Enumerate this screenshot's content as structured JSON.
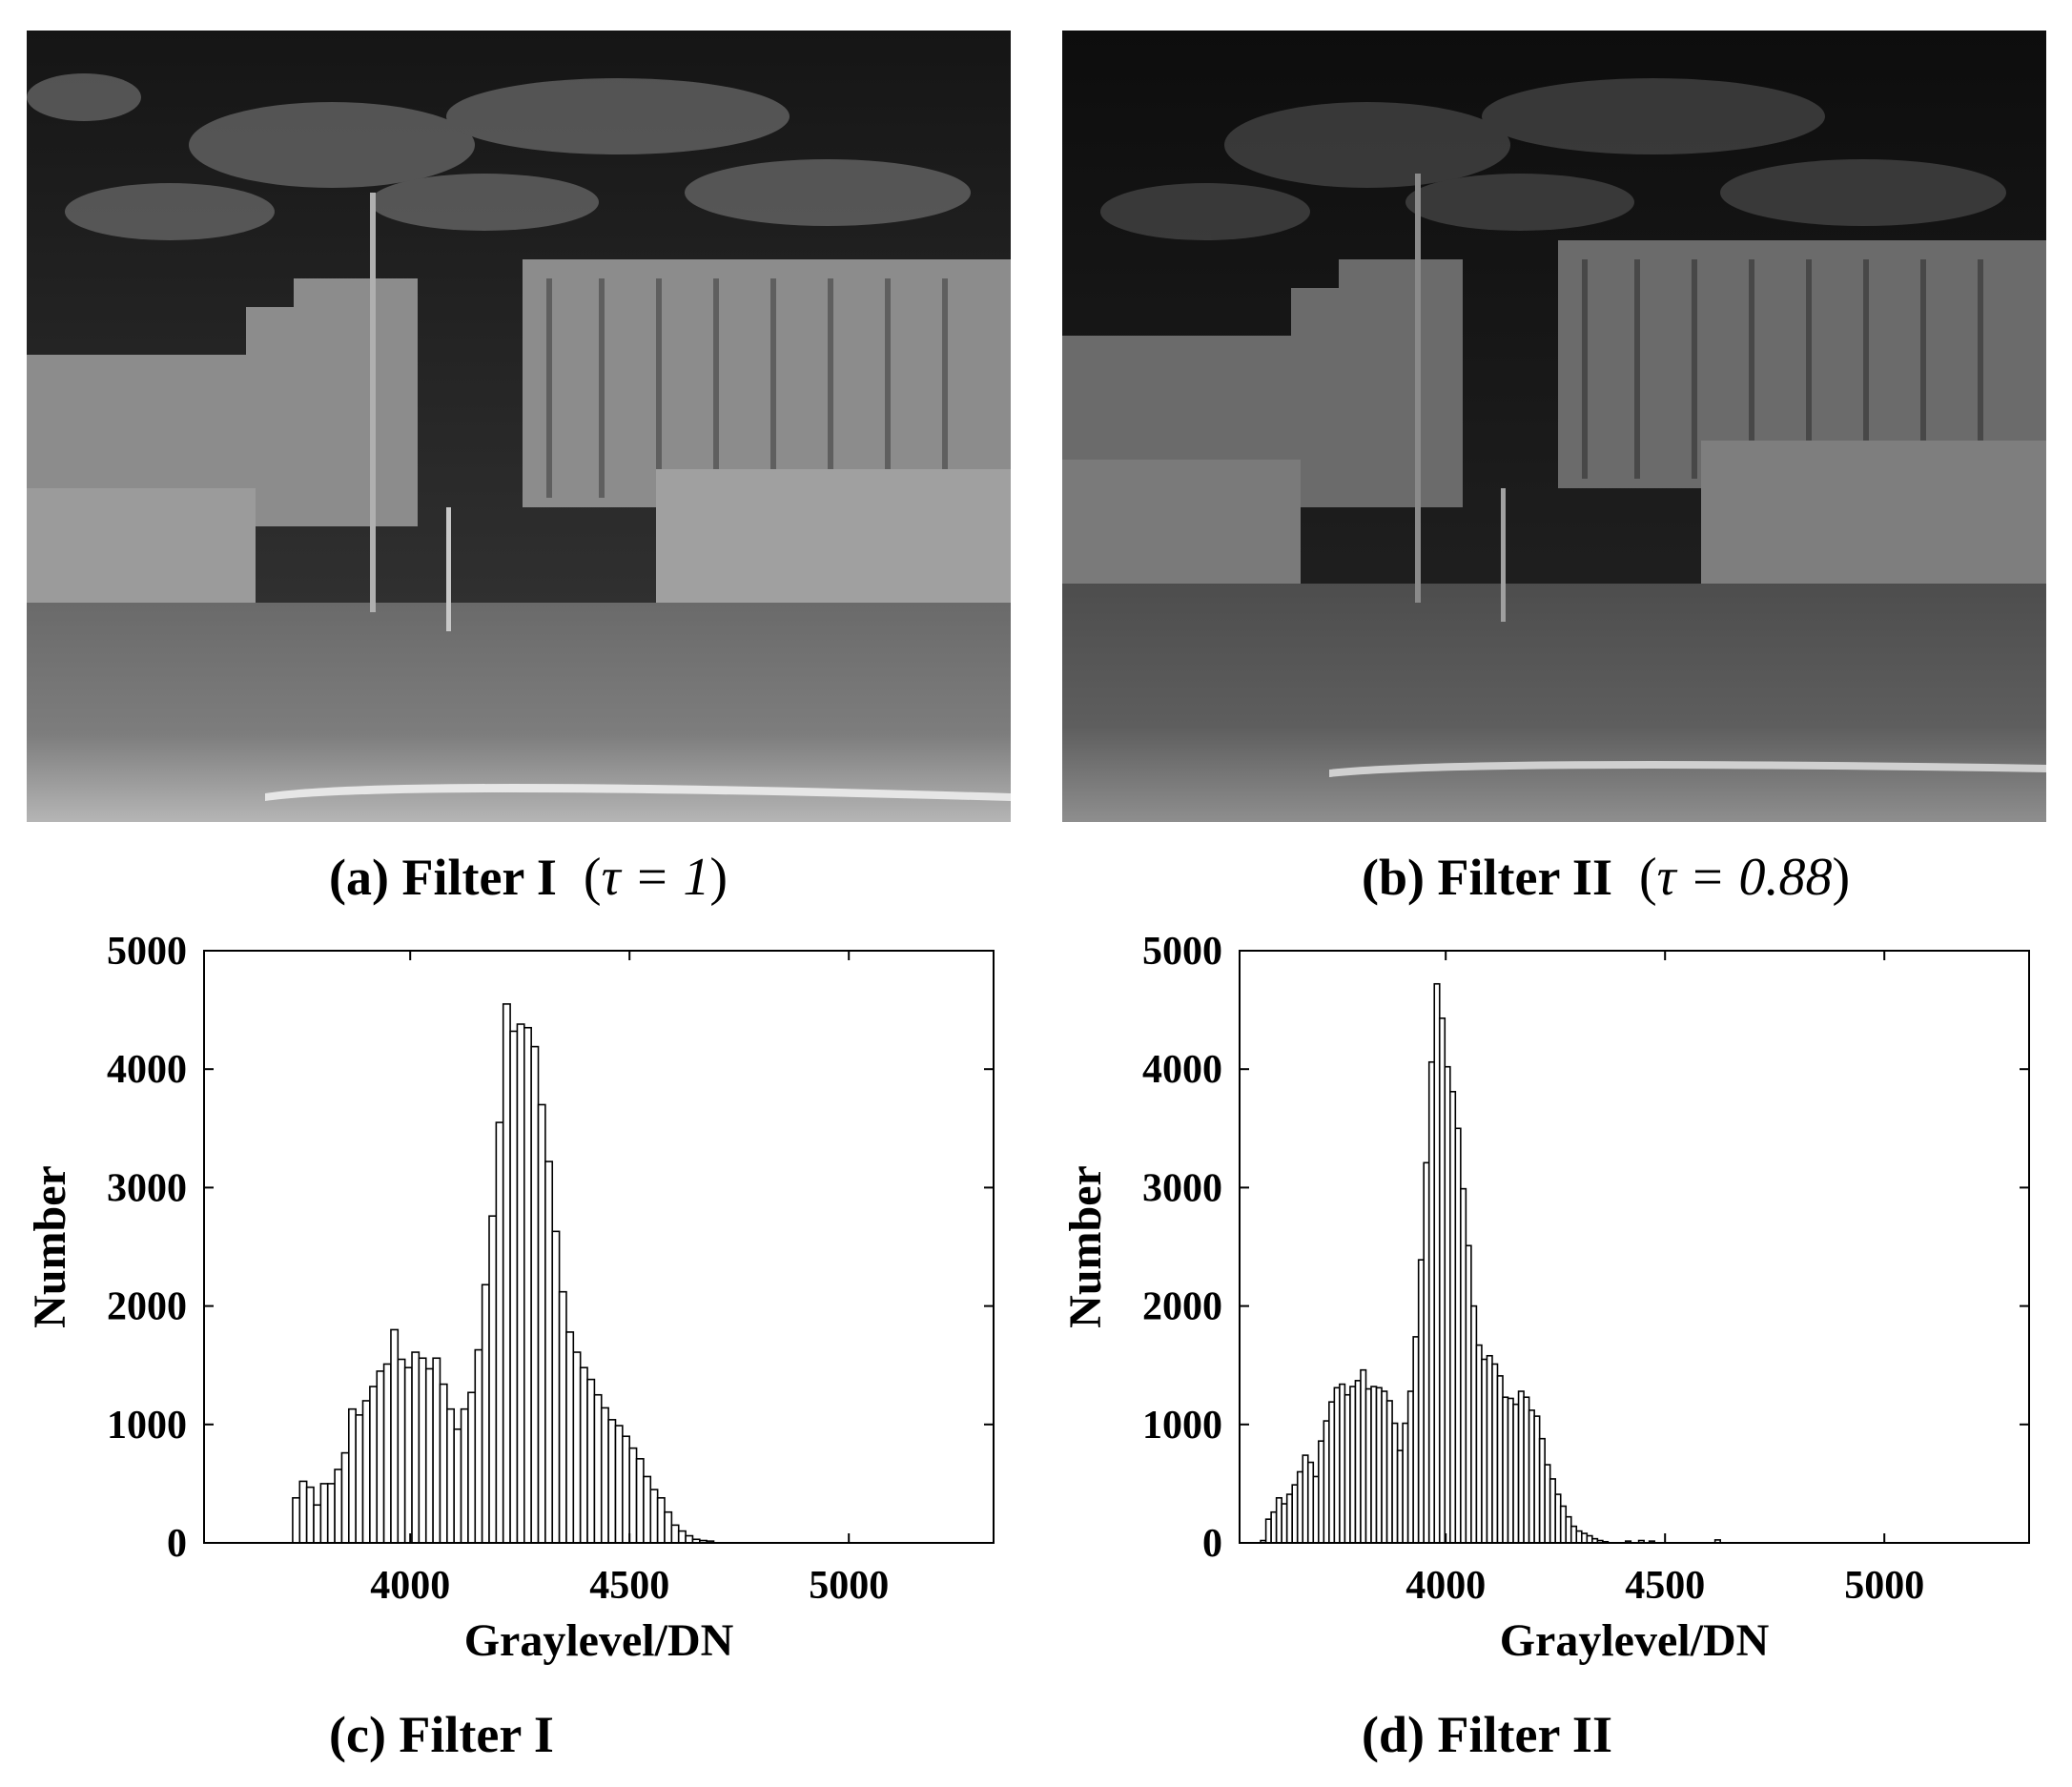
{
  "captions": {
    "a": {
      "label": "(a) Filter I",
      "tau": "τ = 1"
    },
    "b": {
      "label": "(b) Filter II",
      "tau": "τ = 0.88"
    },
    "c": {
      "label": "(c) Filter I"
    },
    "d": {
      "label": "(d) Filter II"
    }
  },
  "colors": {
    "bar_fill": "#ffffff",
    "bar_stroke": "#000000",
    "axis": "#000000"
  },
  "chart_data": [
    {
      "type": "bar",
      "title": "",
      "xlabel": "Graylevel/DN",
      "ylabel": "Number",
      "xlim": [
        3530,
        5330
      ],
      "ylim": [
        0,
        5000
      ],
      "xticks": [
        4000,
        4500,
        5000
      ],
      "yticks": [
        0,
        1000,
        2000,
        3000,
        4000,
        5000
      ],
      "bin_width": 16,
      "x": [
        3740,
        3756,
        3772,
        3788,
        3804,
        3820,
        3836,
        3852,
        3868,
        3884,
        3900,
        3916,
        3932,
        3948,
        3964,
        3980,
        3996,
        4012,
        4028,
        4044,
        4060,
        4076,
        4092,
        4108,
        4124,
        4140,
        4156,
        4172,
        4188,
        4204,
        4220,
        4236,
        4252,
        4268,
        4284,
        4300,
        4316,
        4332,
        4348,
        4364,
        4380,
        4396,
        4412,
        4428,
        4444,
        4460,
        4476,
        4492,
        4508,
        4524,
        4540,
        4556,
        4572,
        4588,
        4604,
        4620,
        4636,
        4652,
        4668,
        4684
      ],
      "values": [
        380,
        520,
        470,
        320,
        500,
        500,
        620,
        760,
        1130,
        1080,
        1200,
        1320,
        1450,
        1510,
        1800,
        1550,
        1480,
        1610,
        1560,
        1470,
        1560,
        1340,
        1130,
        960,
        1130,
        1270,
        1630,
        2180,
        2760,
        3550,
        4550,
        4320,
        4380,
        4350,
        4190,
        3700,
        3220,
        2630,
        2120,
        1780,
        1610,
        1480,
        1380,
        1250,
        1140,
        1040,
        990,
        900,
        800,
        710,
        560,
        450,
        380,
        260,
        150,
        100,
        60,
        30,
        20,
        15
      ]
    },
    {
      "type": "bar",
      "title": "",
      "xlabel": "Graylevel/DN",
      "ylabel": "Number",
      "xlim": [
        3530,
        5330
      ],
      "ylim": [
        0,
        5000
      ],
      "xticks": [
        4000,
        4500,
        5000
      ],
      "yticks": [
        0,
        1000,
        2000,
        3000,
        4000,
        5000
      ],
      "bin_width": 12,
      "x": [
        3584,
        3596,
        3608,
        3620,
        3632,
        3644,
        3656,
        3668,
        3680,
        3692,
        3704,
        3716,
        3728,
        3740,
        3752,
        3764,
        3776,
        3788,
        3800,
        3812,
        3824,
        3836,
        3848,
        3860,
        3872,
        3884,
        3896,
        3908,
        3920,
        3932,
        3944,
        3956,
        3968,
        3980,
        3992,
        4004,
        4016,
        4028,
        4040,
        4052,
        4064,
        4076,
        4088,
        4100,
        4112,
        4124,
        4136,
        4148,
        4160,
        4172,
        4184,
        4196,
        4208,
        4220,
        4232,
        4244,
        4256,
        4268,
        4280,
        4292,
        4304,
        4316,
        4328,
        4340,
        4352,
        4364,
        4416,
        4446,
        4470,
        4620
      ],
      "values": [
        20,
        200,
        260,
        380,
        330,
        410,
        490,
        600,
        740,
        680,
        560,
        860,
        1030,
        1190,
        1310,
        1340,
        1250,
        1320,
        1370,
        1460,
        1300,
        1320,
        1310,
        1280,
        1200,
        1010,
        780,
        1010,
        1280,
        1740,
        2390,
        3210,
        4060,
        4720,
        4430,
        4020,
        3810,
        3500,
        2990,
        2510,
        2000,
        1670,
        1550,
        1580,
        1510,
        1410,
        1230,
        1220,
        1170,
        1280,
        1230,
        1120,
        1070,
        880,
        660,
        540,
        410,
        310,
        220,
        140,
        100,
        80,
        60,
        35,
        20,
        10,
        15,
        20,
        15,
        25
      ]
    }
  ]
}
